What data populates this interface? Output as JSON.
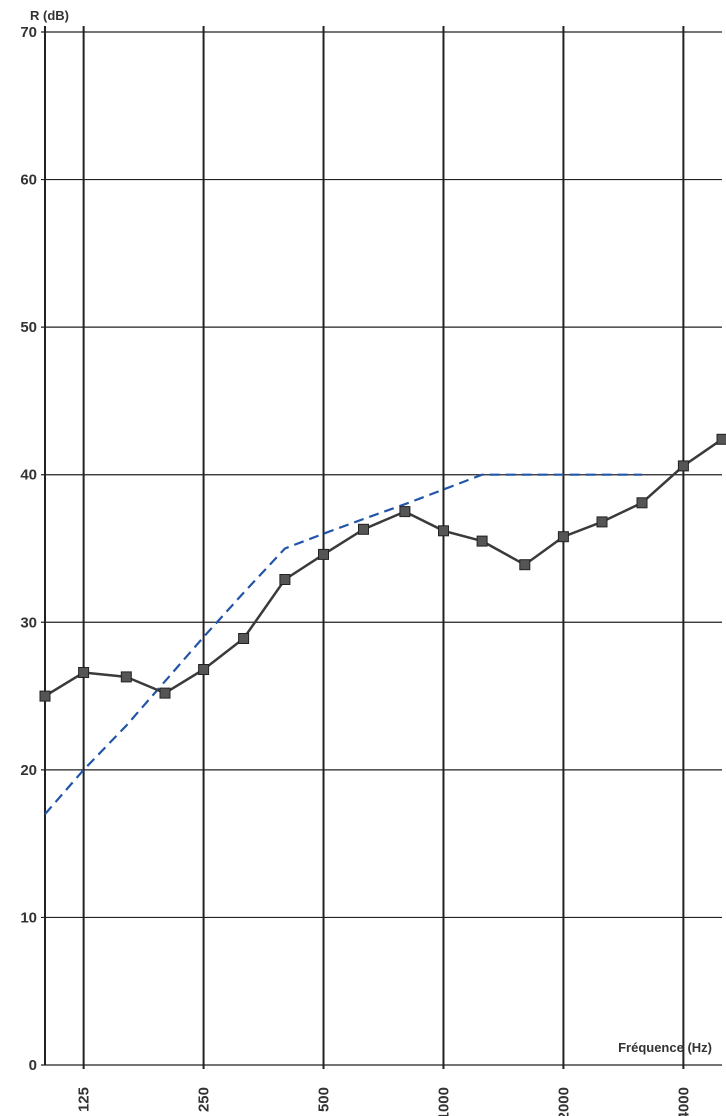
{
  "chart_data": {
    "type": "line",
    "ylabel": "R (dB)",
    "xlabel": "Fréquence (Hz)",
    "ylim": [
      0,
      70
    ],
    "yticks": [
      0,
      10,
      20,
      30,
      40,
      50,
      60,
      70
    ],
    "x_scale": "log",
    "xlim": [
      100,
      5000
    ],
    "xticks": [
      125,
      250,
      500,
      1000,
      2000,
      4000
    ],
    "grid": true,
    "colors": {
      "measured": "#3a3a3a",
      "reference": "#2255aa",
      "grid": "#222222"
    },
    "series": [
      {
        "style": "solid-square-markers",
        "x": [
          100,
          125,
          160,
          200,
          250,
          315,
          400,
          500,
          630,
          800,
          1000,
          1250,
          1600,
          2000,
          2500,
          3150,
          4000,
          5000
        ],
        "y": [
          25,
          26.6,
          26.3,
          25.2,
          26.8,
          28.9,
          32.9,
          34.6,
          36.3,
          37.5,
          36.2,
          35.5,
          33.9,
          35.8,
          36.8,
          38.1,
          40.6,
          42.4
        ]
      },
      {
        "style": "dashed",
        "x": [
          100,
          125,
          160,
          200,
          250,
          315,
          400,
          500,
          630,
          800,
          1000,
          1250,
          1600,
          2000,
          2500,
          3150
        ],
        "y": [
          17,
          20,
          23,
          26,
          29,
          32,
          35,
          36,
          37,
          38,
          39,
          40,
          40,
          40,
          40,
          40
        ]
      }
    ]
  }
}
